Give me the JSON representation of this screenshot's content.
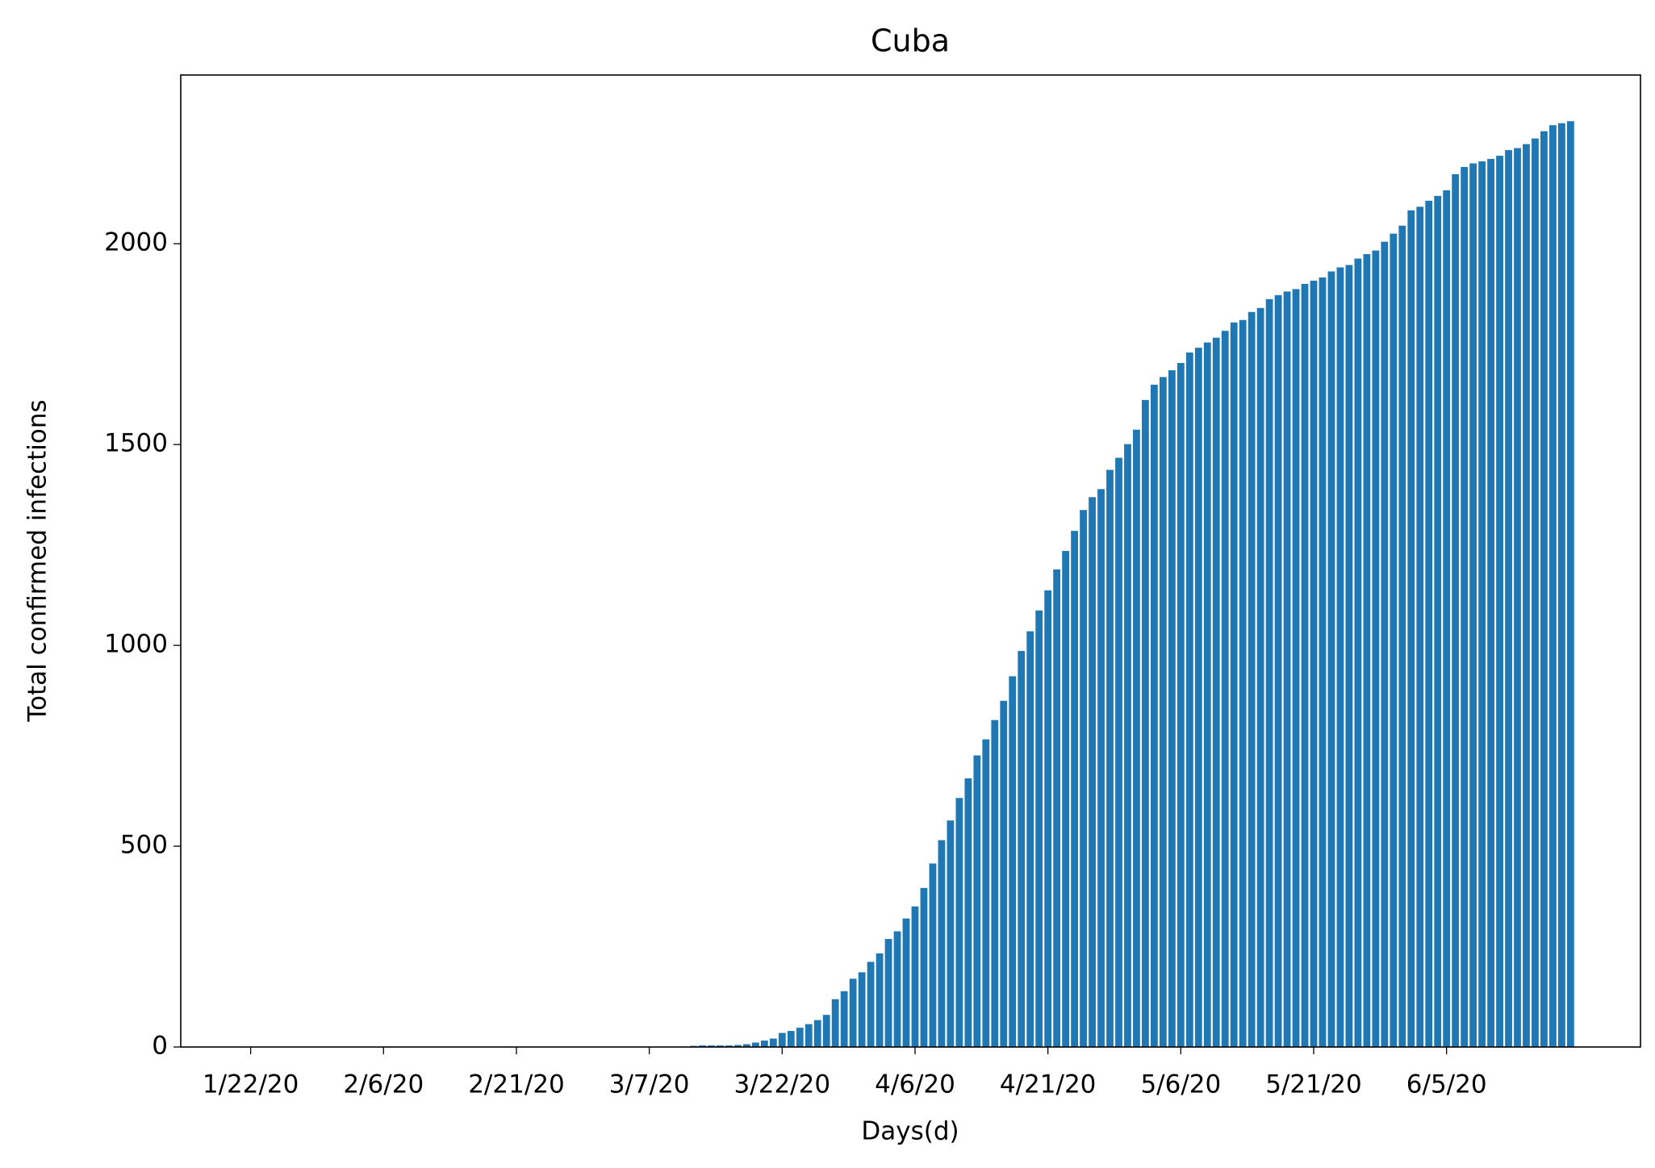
{
  "chart_data": {
    "type": "bar",
    "title": "Cuba",
    "x_label": "Days(d)",
    "y_label": "Total confirmed infections",
    "color": "#1f77b4",
    "categories": [
      "1/22/20",
      null,
      null,
      null,
      null,
      null,
      null,
      null,
      null,
      null,
      null,
      null,
      null,
      null,
      null,
      "2/6/20",
      null,
      null,
      null,
      null,
      null,
      null,
      null,
      null,
      null,
      null,
      null,
      null,
      null,
      null,
      "2/21/20",
      null,
      null,
      null,
      null,
      null,
      null,
      null,
      null,
      null,
      null,
      null,
      null,
      null,
      null,
      "3/7/20",
      null,
      null,
      null,
      null,
      null,
      null,
      null,
      null,
      null,
      null,
      null,
      null,
      null,
      null,
      "3/22/20",
      null,
      null,
      null,
      null,
      null,
      null,
      null,
      null,
      null,
      null,
      null,
      null,
      null,
      null,
      "4/6/20",
      null,
      null,
      null,
      null,
      null,
      null,
      null,
      null,
      null,
      null,
      null,
      null,
      null,
      null,
      "4/21/20",
      null,
      null,
      null,
      null,
      null,
      null,
      null,
      null,
      null,
      null,
      null,
      null,
      null,
      null,
      "5/6/20",
      null,
      null,
      null,
      null,
      null,
      null,
      null,
      null,
      null,
      null,
      null,
      null,
      null,
      null,
      "5/21/20",
      null,
      null,
      null,
      null,
      null,
      null,
      null,
      null,
      null,
      null,
      null,
      null,
      null,
      null,
      "6/5/20",
      null,
      null,
      null,
      null,
      null,
      null,
      null,
      null,
      null,
      null,
      null,
      null,
      null,
      null
    ],
    "values": [
      0,
      0,
      0,
      0,
      0,
      0,
      0,
      0,
      0,
      0,
      0,
      0,
      0,
      0,
      0,
      0,
      0,
      0,
      0,
      0,
      0,
      0,
      0,
      0,
      0,
      0,
      0,
      0,
      0,
      0,
      0,
      0,
      0,
      0,
      0,
      0,
      0,
      0,
      0,
      0,
      0,
      0,
      0,
      0,
      0,
      0,
      0,
      0,
      0,
      0,
      3,
      4,
      4,
      4,
      4,
      5,
      7,
      11,
      16,
      21,
      35,
      40,
      48,
      57,
      67,
      80,
      119,
      139,
      170,
      186,
      212,
      233,
      269,
      288,
      320,
      350,
      396,
      457,
      515,
      564,
      620,
      669,
      726,
      766,
      814,
      862,
      923,
      986,
      1035,
      1087,
      1137,
      1189,
      1235,
      1285,
      1337,
      1369,
      1389,
      1437,
      1467,
      1501,
      1537,
      1611,
      1649,
      1668,
      1685,
      1703,
      1729,
      1741,
      1754,
      1766,
      1783,
      1804,
      1810,
      1830,
      1840,
      1862,
      1872,
      1881,
      1887,
      1900,
      1908,
      1916,
      1931,
      1941,
      1947,
      1963,
      1974,
      1983,
      2005,
      2025,
      2045,
      2083,
      2092,
      2107,
      2119,
      2133,
      2173,
      2191,
      2200,
      2205,
      2211,
      2219,
      2233,
      2238,
      2248,
      2262,
      2280,
      2295,
      2300,
      2305
    ],
    "ylim": [
      0,
      2420
    ],
    "yticks": [
      0,
      500,
      1000,
      1500,
      2000
    ],
    "grid": false
  }
}
